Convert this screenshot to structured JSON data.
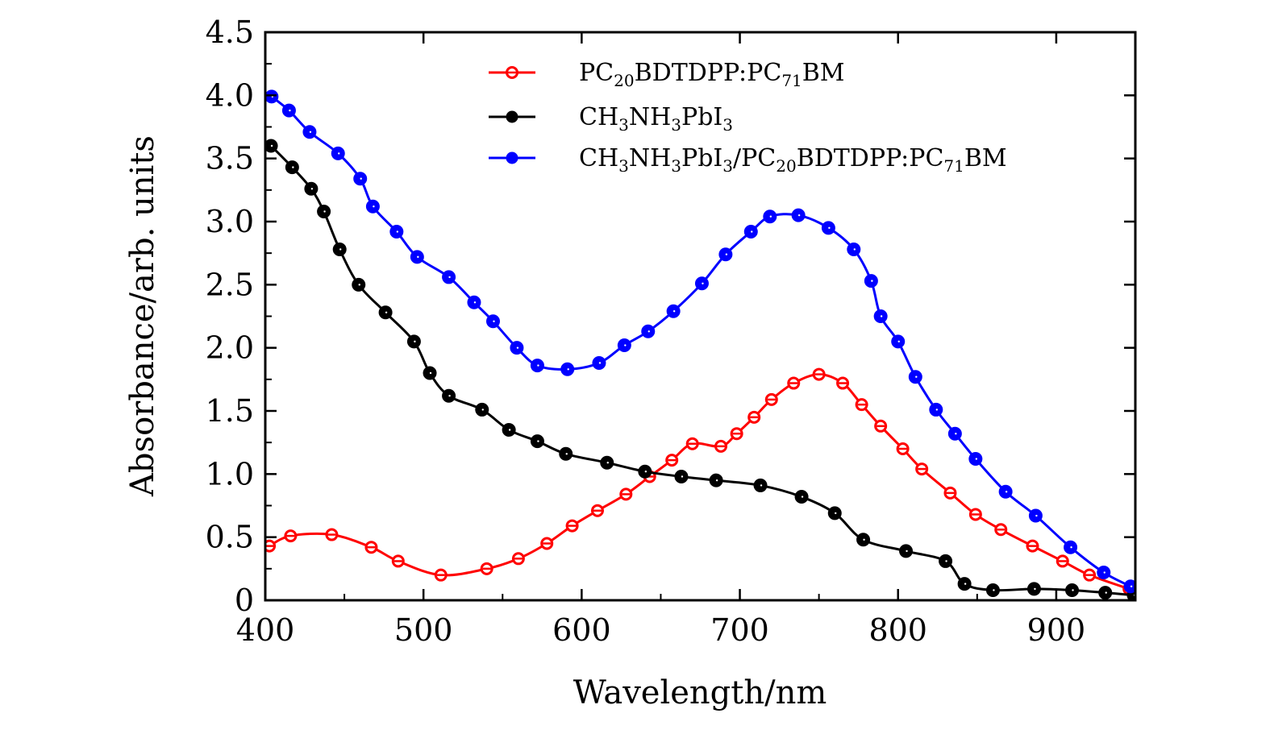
{
  "chart_data": {
    "type": "line",
    "title": "",
    "xlabel": "Wavelength/nm",
    "ylabel": "Absorbance/arb. units",
    "xlim": [
      400,
      950
    ],
    "ylim": [
      0,
      4.5
    ],
    "xticks": [
      400,
      500,
      600,
      700,
      800,
      900
    ],
    "xtick_labels": [
      "400",
      "500",
      "600",
      "700",
      "800",
      "900"
    ],
    "yticks": [
      0,
      0.5,
      1.0,
      1.5,
      2.0,
      2.5,
      3.0,
      3.5,
      4.0,
      4.5
    ],
    "ytick_labels": [
      "0",
      "0.5",
      "1.0",
      "1.5",
      "2.0",
      "2.5",
      "3.0",
      "3.5",
      "4.0",
      "4.5"
    ],
    "grid": false,
    "legend_position": "top-right",
    "series": [
      {
        "name": "PC20BDTDPP:PC71BM",
        "legend_parts": [
          [
            "PC",
            ""
          ],
          [
            "20",
            "sub"
          ],
          [
            "BDTDPP:PC",
            ""
          ],
          [
            "71",
            "sub"
          ],
          [
            "BM",
            ""
          ]
        ],
        "color": "#ff0000",
        "marker": "open-circle",
        "x": [
          402.6,
          416,
          442,
          467,
          484,
          511,
          540,
          560,
          578,
          594,
          610,
          628,
          643,
          657,
          670,
          688,
          698,
          709,
          720,
          734,
          750,
          765,
          777,
          789,
          803,
          815,
          833,
          849,
          865,
          885,
          904,
          921,
          946
        ],
        "y": [
          0.43,
          0.51,
          0.52,
          0.42,
          0.31,
          0.2,
          0.25,
          0.33,
          0.45,
          0.59,
          0.71,
          0.84,
          0.98,
          1.11,
          1.24,
          1.22,
          1.32,
          1.45,
          1.59,
          1.72,
          1.79,
          1.72,
          1.55,
          1.38,
          1.2,
          1.04,
          0.85,
          0.68,
          0.56,
          0.43,
          0.31,
          0.2,
          0.09
        ]
      },
      {
        "name": "CH3NH3PbI3",
        "legend_parts": [
          [
            "CH",
            ""
          ],
          [
            "3",
            "sub"
          ],
          [
            "NH",
            ""
          ],
          [
            "3",
            "sub"
          ],
          [
            "PbI",
            ""
          ],
          [
            "3",
            "sub"
          ]
        ],
        "color": "#000000",
        "marker": "filled-circle",
        "x": [
          403.6,
          417,
          429,
          437,
          447,
          459,
          476,
          494,
          504,
          516,
          537,
          554,
          572,
          590,
          616,
          640,
          663,
          685,
          713,
          739,
          760,
          778,
          805,
          830,
          842,
          860,
          886,
          910,
          931,
          949
        ],
        "y": [
          3.6,
          3.43,
          3.26,
          3.08,
          2.78,
          2.5,
          2.28,
          2.05,
          1.8,
          1.62,
          1.51,
          1.35,
          1.26,
          1.16,
          1.09,
          1.02,
          0.98,
          0.95,
          0.91,
          0.82,
          0.69,
          0.48,
          0.39,
          0.31,
          0.13,
          0.08,
          0.09,
          0.08,
          0.06,
          0.04
        ]
      },
      {
        "name": "CH3NH3PbI3/PC20BDTDPP:PC71BM",
        "legend_parts": [
          [
            "CH",
            ""
          ],
          [
            "3",
            "sub"
          ],
          [
            "NH",
            ""
          ],
          [
            "3",
            "sub"
          ],
          [
            "PbI",
            ""
          ],
          [
            "3",
            "sub"
          ],
          [
            "/PC",
            ""
          ],
          [
            "20",
            "sub"
          ],
          [
            "BDTDPP:PC",
            ""
          ],
          [
            "71",
            "sub"
          ],
          [
            "BM",
            ""
          ]
        ],
        "color": "#0000ff",
        "marker": "filled-circle",
        "x": [
          404,
          415,
          428,
          446,
          460,
          468,
          483,
          496,
          516,
          532,
          544,
          559,
          572,
          591,
          611,
          627,
          642,
          658,
          676,
          691,
          707,
          719,
          737,
          756,
          772,
          783,
          789,
          800,
          811,
          824,
          836,
          849,
          868,
          887,
          909,
          930,
          947
        ],
        "y": [
          3.99,
          3.88,
          3.71,
          3.54,
          3.34,
          3.12,
          2.92,
          2.72,
          2.56,
          2.36,
          2.21,
          2.0,
          1.86,
          1.83,
          1.88,
          2.02,
          2.13,
          2.29,
          2.51,
          2.74,
          2.92,
          3.04,
          3.05,
          2.95,
          2.78,
          2.53,
          2.25,
          2.05,
          1.77,
          1.51,
          1.32,
          1.12,
          0.86,
          0.67,
          0.42,
          0.22,
          0.11
        ]
      }
    ]
  }
}
